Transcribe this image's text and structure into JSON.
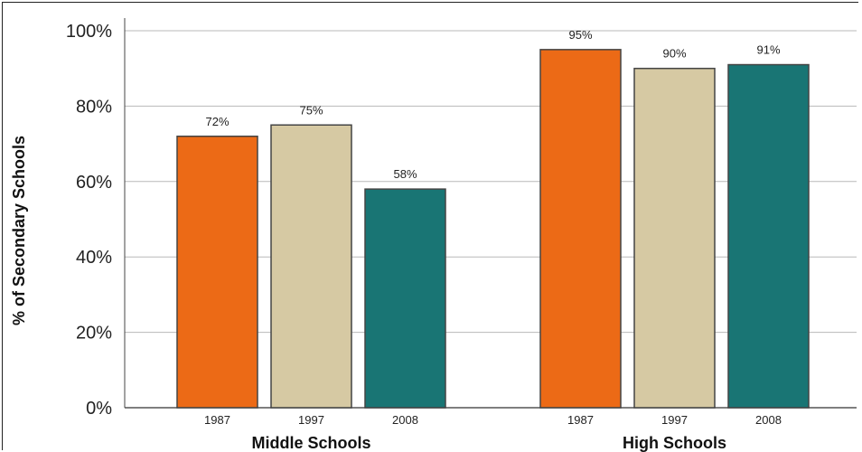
{
  "chart_data": {
    "type": "bar",
    "ylabel": "% of Secondary Schools",
    "xlabel": "",
    "ylim": [
      0,
      100
    ],
    "yticks": [
      0,
      20,
      40,
      60,
      80,
      100
    ],
    "ytick_labels": [
      "0%",
      "20%",
      "40%",
      "60%",
      "80%",
      "100%"
    ],
    "grid": true,
    "groups": [
      {
        "name": "Middle Schools",
        "bars": [
          {
            "year": "1987",
            "value": 72,
            "label": "72%"
          },
          {
            "year": "1997",
            "value": 75,
            "label": "75%"
          },
          {
            "year": "2008",
            "value": 58,
            "label": "58%"
          }
        ]
      },
      {
        "name": "High Schools",
        "bars": [
          {
            "year": "1987",
            "value": 95,
            "label": "95%"
          },
          {
            "year": "1997",
            "value": 90,
            "label": "90%"
          },
          {
            "year": "2008",
            "value": 91,
            "label": "91%"
          }
        ]
      }
    ],
    "colors": {
      "1987": "#ec6a16",
      "1997": "#d6c9a3",
      "2008": "#197574"
    }
  }
}
